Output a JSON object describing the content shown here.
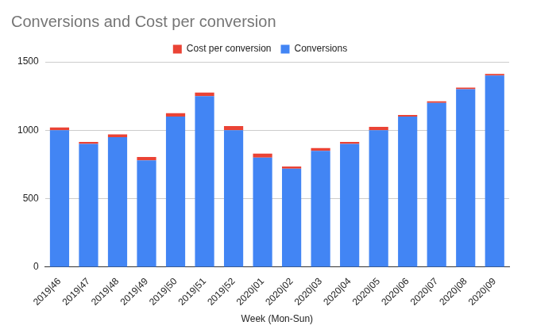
{
  "chart_data": {
    "type": "bar",
    "title": "Conversions and Cost per conversion",
    "x_label": "Week (Mon-Sun)",
    "categories": [
      "2019|46",
      "2019|47",
      "2019|48",
      "2019|49",
      "2019|50",
      "2019|51",
      "2019|52",
      "2020|01",
      "2020|02",
      "2020|03",
      "2020|04",
      "2020|05",
      "2020|06",
      "2020|07",
      "2020|08",
      "2020|09"
    ],
    "series": [
      {
        "name": "Conversions",
        "color": "#4285f4",
        "values": [
          1000,
          900,
          950,
          780,
          1100,
          1250,
          1000,
          800,
          720,
          850,
          900,
          1000,
          1100,
          1200,
          1300,
          1400
        ]
      },
      {
        "name": "Cost per conversion",
        "color": "#ea4335",
        "values": [
          20,
          15,
          20,
          25,
          25,
          25,
          30,
          30,
          15,
          20,
          15,
          25,
          12,
          12,
          12,
          12
        ]
      }
    ],
    "stacked": true,
    "legend": "top",
    "grid": true,
    "ylim": [
      0,
      1500
    ],
    "yticks": [
      0,
      500,
      1000,
      1500
    ]
  }
}
